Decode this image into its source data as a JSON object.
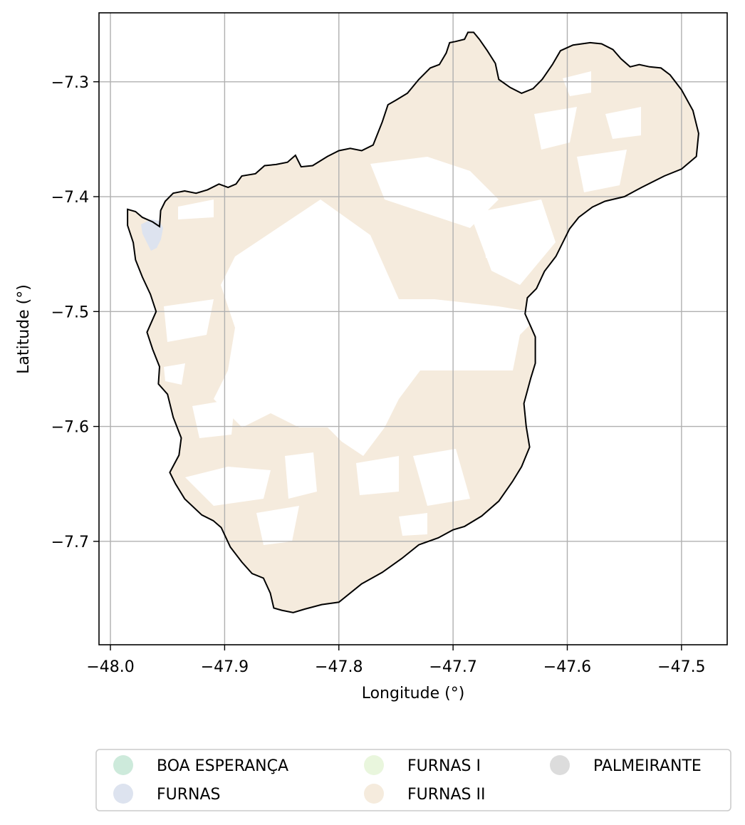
{
  "chart_data": {
    "type": "map",
    "xlabel": "Longitude (°)",
    "ylabel": "Latitude (°)",
    "xlim": [
      -48.01,
      -47.46
    ],
    "ylim": [
      -7.79,
      -7.24
    ],
    "x_ticks": [
      {
        "value": -48.0,
        "label": "−48.0"
      },
      {
        "value": -47.9,
        "label": "−47.9"
      },
      {
        "value": -47.8,
        "label": "−47.8"
      },
      {
        "value": -47.7,
        "label": "−47.7"
      },
      {
        "value": -47.6,
        "label": "−47.6"
      },
      {
        "value": -47.5,
        "label": "−47.5"
      }
    ],
    "y_ticks": [
      {
        "value": -7.3,
        "label": "−7.3"
      },
      {
        "value": -7.4,
        "label": "−7.4"
      },
      {
        "value": -7.5,
        "label": "−7.5"
      },
      {
        "value": -7.6,
        "label": "−7.6"
      },
      {
        "value": -7.7,
        "label": "−7.7"
      }
    ],
    "grid": true,
    "legend": {
      "placement": "bottom",
      "columns": 3,
      "items": [
        {
          "label": "BOA ESPERANÇA",
          "color": "#cdeadb"
        },
        {
          "label": "FURNAS",
          "color": "#dde3ef"
        },
        {
          "label": "FURNAS I",
          "color": "#e9f6dd"
        },
        {
          "label": "FURNAS II",
          "color": "#f5ebdd"
        },
        {
          "label": "PALMEIRANTE",
          "color": "#dcdcdc"
        }
      ]
    },
    "boundary": {
      "stroke": "#000000",
      "points": [
        [
          -47.985,
          -7.411
        ],
        [
          -47.978,
          -7.413
        ],
        [
          -47.972,
          -7.418
        ],
        [
          -47.963,
          -7.422
        ],
        [
          -47.957,
          -7.426
        ],
        [
          -47.956,
          -7.412
        ],
        [
          -47.952,
          -7.404
        ],
        [
          -47.945,
          -7.397
        ],
        [
          -47.935,
          -7.395
        ],
        [
          -47.925,
          -7.397
        ],
        [
          -47.915,
          -7.394
        ],
        [
          -47.905,
          -7.389
        ],
        [
          -47.897,
          -7.392
        ],
        [
          -47.89,
          -7.389
        ],
        [
          -47.885,
          -7.382
        ],
        [
          -47.873,
          -7.38
        ],
        [
          -47.865,
          -7.373
        ],
        [
          -47.855,
          -7.372
        ],
        [
          -47.845,
          -7.37
        ],
        [
          -47.838,
          -7.364
        ],
        [
          -47.833,
          -7.374
        ],
        [
          -47.823,
          -7.373
        ],
        [
          -47.81,
          -7.365
        ],
        [
          -47.8,
          -7.36
        ],
        [
          -47.79,
          -7.358
        ],
        [
          -47.78,
          -7.36
        ],
        [
          -47.77,
          -7.355
        ],
        [
          -47.762,
          -7.335
        ],
        [
          -47.757,
          -7.32
        ],
        [
          -47.75,
          -7.316
        ],
        [
          -47.74,
          -7.31
        ],
        [
          -47.73,
          -7.298
        ],
        [
          -47.72,
          -7.288
        ],
        [
          -47.712,
          -7.285
        ],
        [
          -47.706,
          -7.275
        ],
        [
          -47.703,
          -7.266
        ],
        [
          -47.698,
          -7.265
        ],
        [
          -47.69,
          -7.263
        ],
        [
          -47.687,
          -7.257
        ],
        [
          -47.682,
          -7.257
        ],
        [
          -47.677,
          -7.263
        ],
        [
          -47.67,
          -7.273
        ],
        [
          -47.663,
          -7.284
        ],
        [
          -47.66,
          -7.298
        ],
        [
          -47.65,
          -7.305
        ],
        [
          -47.64,
          -7.31
        ],
        [
          -47.63,
          -7.306
        ],
        [
          -47.622,
          -7.298
        ],
        [
          -47.613,
          -7.285
        ],
        [
          -47.606,
          -7.273
        ],
        [
          -47.595,
          -7.268
        ],
        [
          -47.58,
          -7.266
        ],
        [
          -47.57,
          -7.267
        ],
        [
          -47.56,
          -7.272
        ],
        [
          -47.553,
          -7.28
        ],
        [
          -47.545,
          -7.287
        ],
        [
          -47.537,
          -7.285
        ],
        [
          -47.528,
          -7.287
        ],
        [
          -47.518,
          -7.288
        ],
        [
          -47.51,
          -7.294
        ],
        [
          -47.5,
          -7.307
        ],
        [
          -47.49,
          -7.325
        ],
        [
          -47.485,
          -7.345
        ],
        [
          -47.487,
          -7.365
        ],
        [
          -47.5,
          -7.376
        ],
        [
          -47.515,
          -7.382
        ],
        [
          -47.535,
          -7.392
        ],
        [
          -47.55,
          -7.4
        ],
        [
          -47.567,
          -7.404
        ],
        [
          -47.578,
          -7.409
        ],
        [
          -47.59,
          -7.418
        ],
        [
          -47.598,
          -7.428
        ],
        [
          -47.61,
          -7.452
        ],
        [
          -47.62,
          -7.465
        ],
        [
          -47.627,
          -7.48
        ],
        [
          -47.635,
          -7.488
        ],
        [
          -47.637,
          -7.502
        ],
        [
          -47.632,
          -7.513
        ],
        [
          -47.628,
          -7.522
        ],
        [
          -47.628,
          -7.545
        ],
        [
          -47.632,
          -7.558
        ],
        [
          -47.638,
          -7.58
        ],
        [
          -47.636,
          -7.6
        ],
        [
          -47.633,
          -7.618
        ],
        [
          -47.64,
          -7.635
        ],
        [
          -47.648,
          -7.648
        ],
        [
          -47.66,
          -7.665
        ],
        [
          -47.675,
          -7.678
        ],
        [
          -47.69,
          -7.687
        ],
        [
          -47.7,
          -7.69
        ],
        [
          -47.713,
          -7.697
        ],
        [
          -47.73,
          -7.703
        ],
        [
          -47.745,
          -7.715
        ],
        [
          -47.762,
          -7.727
        ],
        [
          -47.78,
          -7.737
        ],
        [
          -47.8,
          -7.753
        ],
        [
          -47.815,
          -7.755
        ],
        [
          -47.83,
          -7.759
        ],
        [
          -47.84,
          -7.762
        ],
        [
          -47.85,
          -7.76
        ],
        [
          -47.857,
          -7.758
        ],
        [
          -47.86,
          -7.745
        ],
        [
          -47.866,
          -7.732
        ],
        [
          -47.876,
          -7.728
        ],
        [
          -47.885,
          -7.718
        ],
        [
          -47.895,
          -7.705
        ],
        [
          -47.903,
          -7.688
        ],
        [
          -47.91,
          -7.682
        ],
        [
          -47.92,
          -7.677
        ],
        [
          -47.935,
          -7.663
        ],
        [
          -47.943,
          -7.65
        ],
        [
          -47.948,
          -7.64
        ],
        [
          -47.94,
          -7.625
        ],
        [
          -47.938,
          -7.61
        ],
        [
          -47.945,
          -7.592
        ],
        [
          -47.95,
          -7.572
        ],
        [
          -47.958,
          -7.563
        ],
        [
          -47.957,
          -7.548
        ],
        [
          -47.963,
          -7.533
        ],
        [
          -47.968,
          -7.518
        ],
        [
          -47.96,
          -7.5
        ],
        [
          -47.965,
          -7.485
        ],
        [
          -47.972,
          -7.47
        ],
        [
          -47.978,
          -7.455
        ],
        [
          -47.98,
          -7.44
        ],
        [
          -47.985,
          -7.425
        ]
      ]
    }
  }
}
